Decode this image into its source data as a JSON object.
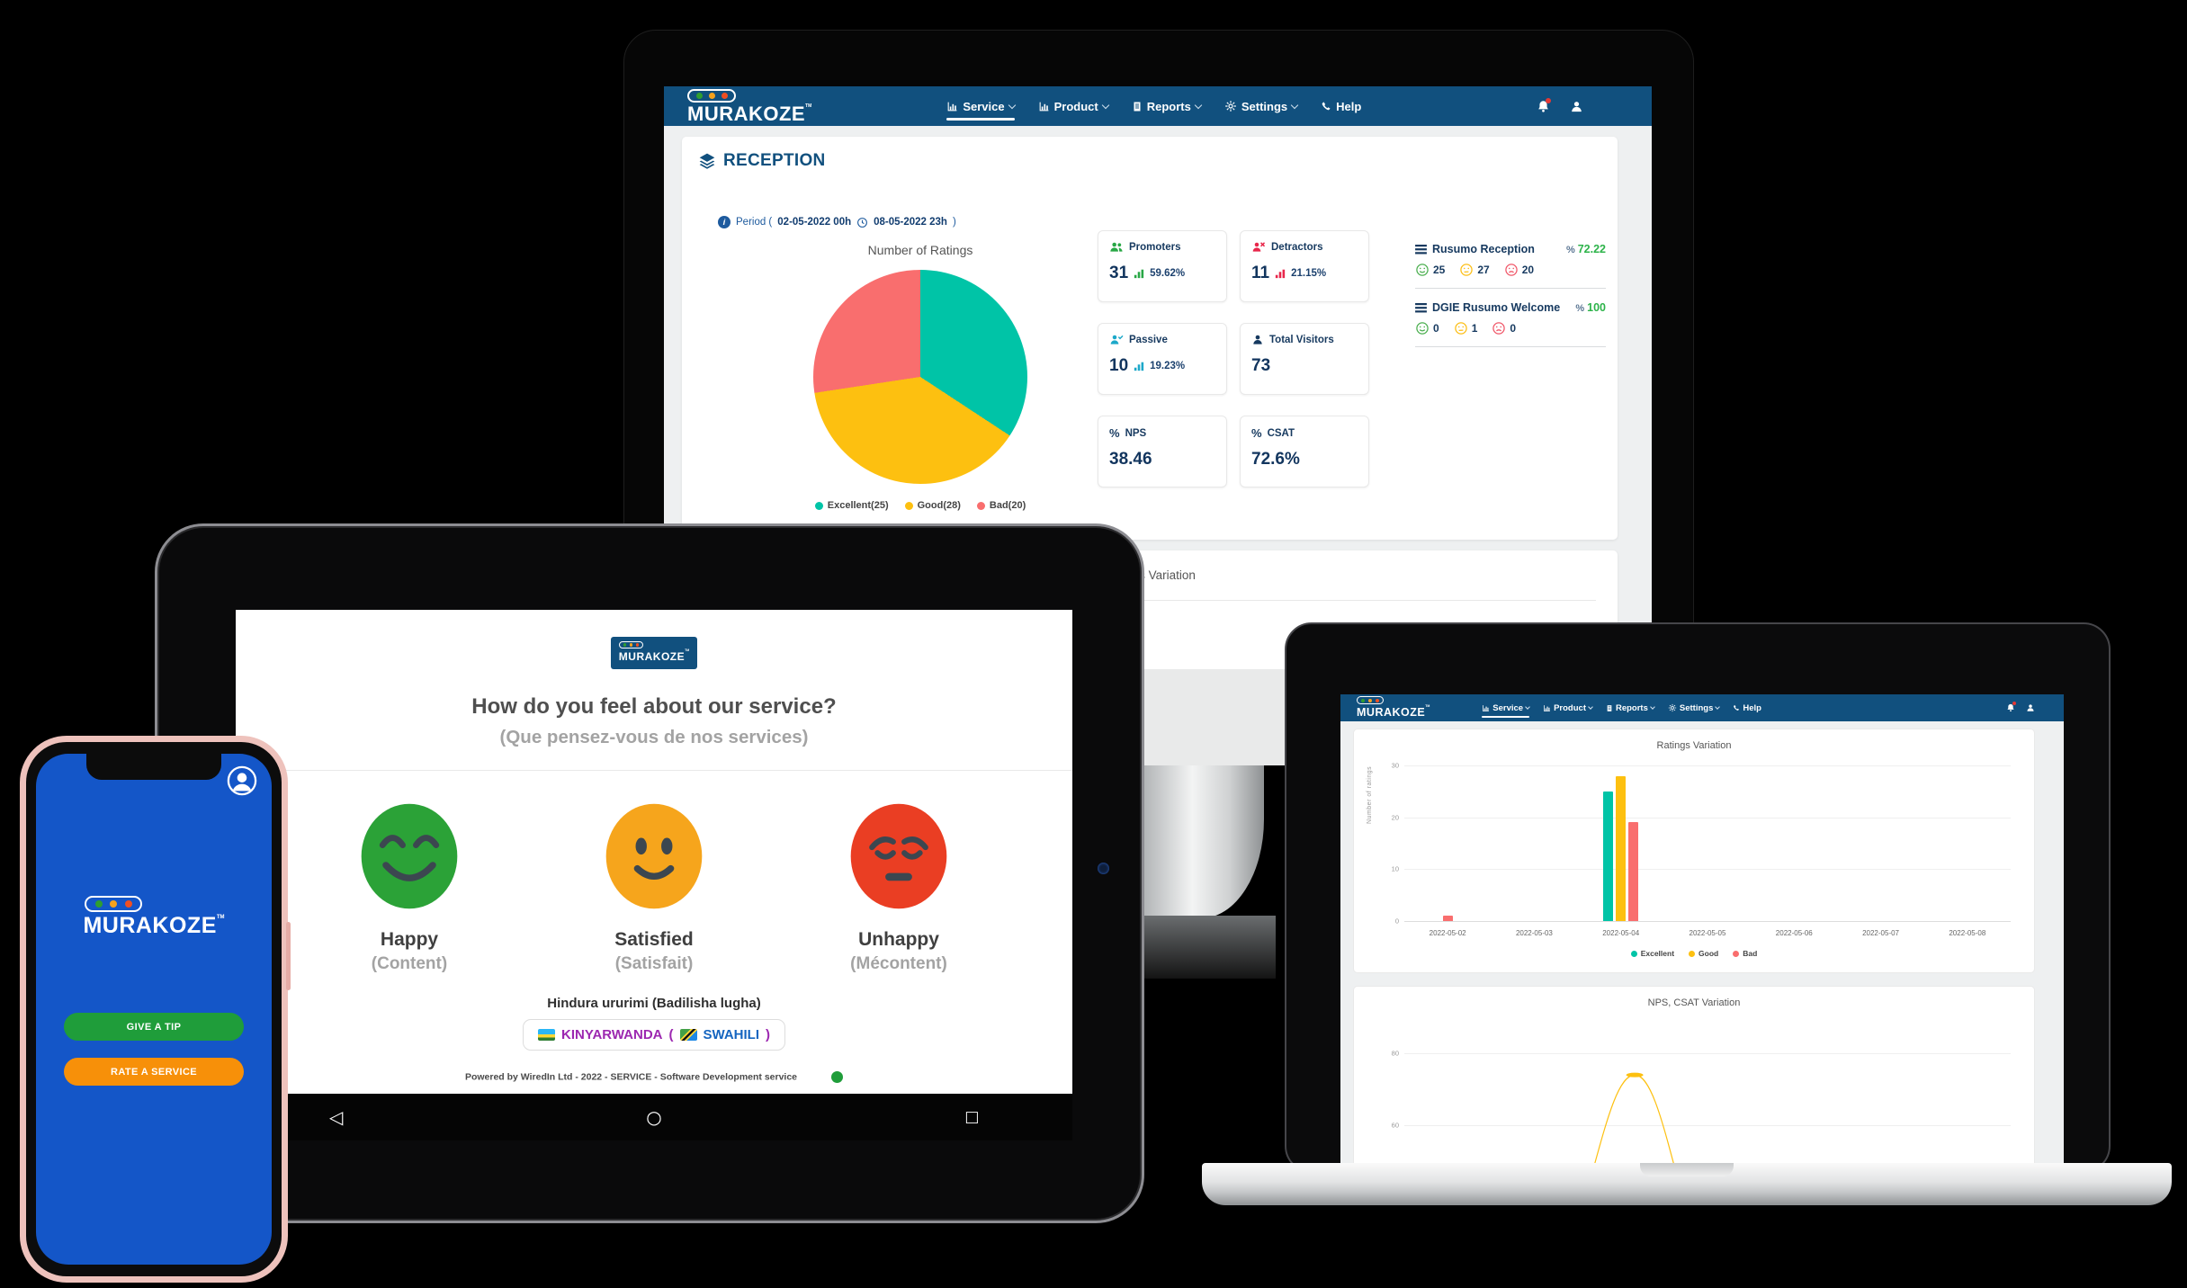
{
  "palette": {
    "nav_blue": "#11507E",
    "navy": "#16395F",
    "green": "#28A745",
    "red": "#E8274B",
    "cyan": "#1CA8C9",
    "teal": "#00C4A7",
    "gold": "#FDC010",
    "salmon": "#F96E6E",
    "score_green": "#2DB34A",
    "happy_green": "#2BA237",
    "satisfied_amber": "#F6A51C",
    "unhappy_red": "#EA3E23",
    "phone_blue": "#1456C8",
    "tip_green": "#1F9D3A",
    "rate_orange": "#F79009",
    "kiny_purple": "#9C27B0",
    "swah_blue": "#1565C0",
    "logo_dot_green": "#2F9E2F",
    "logo_dot_amber": "#F6A21C",
    "logo_dot_orange": "#F04F21"
  },
  "brand": {
    "name": "MURAKOZE",
    "tm": "TM"
  },
  "nav": {
    "active": "Service",
    "items": [
      {
        "label": "Service"
      },
      {
        "label": "Product"
      },
      {
        "label": "Reports"
      },
      {
        "label": "Settings"
      },
      {
        "label": "Help"
      }
    ]
  },
  "desktop": {
    "page_title": "RECEPTION",
    "period": {
      "label": "Period (",
      "start": "02-05-2022 00h",
      "end": "08-05-2022 23h",
      "close": ")"
    },
    "stats": [
      {
        "label": "Promoters",
        "value": "31",
        "percent": "59.62%",
        "color": "#28A745"
      },
      {
        "label": "Detractors",
        "value": "11",
        "percent": "21.15%",
        "color": "#E8274B"
      },
      {
        "label": "Passive",
        "value": "10",
        "percent": "19.23%",
        "color": "#1CA8C9"
      },
      {
        "label": "Total Visitors",
        "value": "73",
        "color": "#16395F"
      },
      {
        "label": "NPS",
        "value": "38.46",
        "color": "#16395F"
      },
      {
        "label": "CSAT",
        "value": "72.6%",
        "color": "#16395F"
      }
    ],
    "locations": [
      {
        "name": "Rusumo Reception",
        "score": "72.22",
        "happy": "25",
        "neutral": "27",
        "sad": "20"
      },
      {
        "name": "DGIE Rusumo Welcome",
        "score": "100",
        "happy": "0",
        "neutral": "1",
        "sad": "0"
      }
    ],
    "bottom_card_title": "Ratings Variation"
  },
  "tablet": {
    "question": "How do you feel about our service?",
    "question_translation": "(Que pensez-vous de nos services)",
    "moods": [
      {
        "label": "Happy",
        "translation": "(Content)",
        "color": "#2BA237"
      },
      {
        "label": "Satisfied",
        "translation": "(Satisfait)",
        "color": "#F6A51C"
      },
      {
        "label": "Unhappy",
        "translation": "(Mécontent)",
        "color": "#EA3E23"
      }
    ],
    "language_prompt": "Hindura ururimi (Badilisha lugha)",
    "language_button": {
      "primary": "KINYARWANDA",
      "open_paren": "(",
      "secondary": "SWAHILI",
      "close_paren": ")"
    },
    "footer": "Powered by WiredIn Ltd - 2022 - SERVICE - Software Development service"
  },
  "phone": {
    "tip_button": "GIVE A TIP",
    "rate_button": "RATE A SERVICE"
  },
  "chart_data": [
    {
      "type": "pie",
      "title": "Number of Ratings",
      "labels": [
        "Excellent",
        "Good",
        "Bad"
      ],
      "values": [
        25,
        28,
        20
      ],
      "colors": [
        "#00C4A7",
        "#FDC010",
        "#F96E6E"
      ],
      "legend": [
        "Excellent(25)",
        "Good(28)",
        "Bad(20)"
      ],
      "legend_position": "bottom",
      "start_angle_deg": 0
    },
    {
      "type": "bar",
      "title": "Ratings Variation",
      "ylabel": "Number of ratings",
      "categories": [
        "2022-05-02",
        "2022-05-03",
        "2022-05-04",
        "2022-05-05",
        "2022-05-06",
        "2022-05-07",
        "2022-05-08"
      ],
      "series": [
        {
          "name": "Excellent",
          "color": "#00C4A7",
          "values": [
            0,
            0,
            25,
            0,
            0,
            0,
            0
          ]
        },
        {
          "name": "Good",
          "color": "#FDC010",
          "values": [
            0,
            0,
            28,
            0,
            0,
            0,
            0
          ]
        },
        {
          "name": "Bad",
          "color": "#F96E6E",
          "values": [
            1,
            0,
            19,
            0,
            0,
            0,
            0
          ]
        }
      ],
      "yticks": [
        0,
        10,
        20,
        30
      ],
      "ylim": [
        0,
        30
      ],
      "grid": true,
      "legend_position": "bottom"
    },
    {
      "type": "line",
      "title": "NPS, CSAT Variation",
      "yticks_visible": [
        80,
        60
      ],
      "series": [
        {
          "name": "CSAT",
          "color": "#FDC010",
          "points": [
            {
              "x": "2022-05-04",
              "y": 74
            }
          ]
        }
      ],
      "grid": true,
      "partially_cropped": true
    }
  ]
}
